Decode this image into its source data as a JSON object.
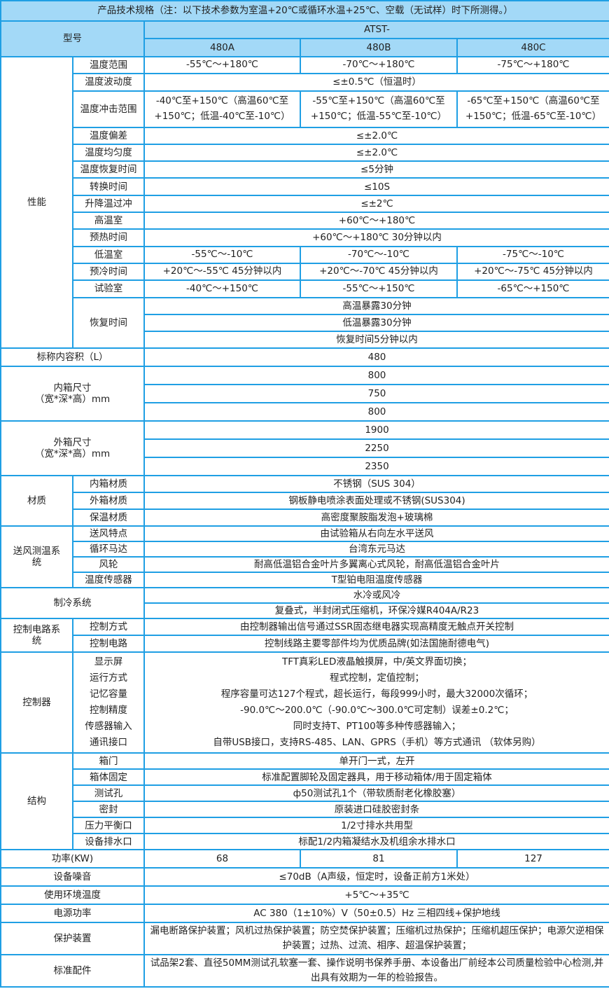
{
  "title": "产品技术规格（注：以下技术参数为室温+20℃或循环水温+25℃、空载（无试样）时下所测得。）",
  "model_header": {
    "label": "型号",
    "series": "ATST-",
    "models": [
      "480A",
      "480B",
      "480C"
    ]
  },
  "sections": [
    {
      "label": [
        "性能"
      ],
      "rows": [
        {
          "label": "温度范围",
          "values": [
            "-55℃～+180℃",
            "-70℃～+180℃",
            "-75℃～+180℃"
          ]
        },
        {
          "label": "温度波动度",
          "value": "≤±0.5℃（恒温时）"
        },
        {
          "label": "温度冲击范围",
          "values": [
            "-40℃至+150℃（高温60℃至+150℃；低温-40℃至-10℃）",
            "-55℃至+150℃（高温60℃至+150℃；低温-55℃至-10℃）",
            "-65℃至+150℃（高温60℃至+150℃；低温-65℃至-10℃）"
          ]
        },
        {
          "label": "温度偏差",
          "value": "≤±2.0℃"
        },
        {
          "label": "温度均匀度",
          "value": "≤±2.0℃"
        },
        {
          "label": "温度恢复时间",
          "value": "≤5分钟"
        },
        {
          "label": "转换时间",
          "value": "≤10S"
        },
        {
          "label": "升降温过冲",
          "value": "≤±2℃"
        },
        {
          "label": "高温室",
          "value": "+60℃～+180℃"
        },
        {
          "label": "预热时间",
          "value": "+60℃～+180℃ 30分钟以内"
        },
        {
          "label": "低温室",
          "values": [
            "-55℃～-10℃",
            "-70℃～-10℃",
            "-75℃～-10℃"
          ]
        },
        {
          "label": "预冷时间",
          "values": [
            "+20℃～-55℃ 45分钟以内",
            "+20℃～-70℃ 45分钟以内",
            "+20℃～-75℃ 45分钟以内"
          ]
        },
        {
          "label": "试验室",
          "values": [
            "-40℃～+150℃",
            "-55℃～+150℃",
            "-65℃～+150℃"
          ]
        },
        {
          "label": "恢复时间",
          "multi": [
            "高温暴露30分钟",
            "低温暴露30分钟",
            "恢复时间5分钟以内"
          ]
        }
      ]
    },
    {
      "label": [
        "标称内容积（L）"
      ],
      "full": true,
      "multi": [
        "480"
      ]
    },
    {
      "label": [
        "内箱尺寸",
        "（宽*深*高）mm"
      ],
      "full": true,
      "multi": [
        "800",
        "750",
        "800"
      ]
    },
    {
      "label": [
        "外箱尺寸",
        "（宽*深*高）mm"
      ],
      "full": true,
      "multi": [
        "1900",
        "2250",
        "2350"
      ]
    },
    {
      "label": [
        "材质"
      ],
      "rows": [
        {
          "label": "内箱材质",
          "value": "不锈钢（SUS 304）"
        },
        {
          "label": "外箱材质",
          "value": "钢板静电喷涂表面处理或不锈钢(SUS304)"
        },
        {
          "label": "保温材质",
          "value": "高密度聚胺脂发泡+玻璃棉"
        }
      ]
    },
    {
      "label": [
        "送风测温系",
        "统"
      ],
      "rows": [
        {
          "label": "送风特点",
          "value": "由试验箱从右向左水平送风"
        },
        {
          "label": "循环马达",
          "value": "台湾东元马达"
        },
        {
          "label": "风轮",
          "value": "耐高低温铝合金叶片多翼离心式风轮，耐高低温铝合金叶片"
        },
        {
          "label": "温度传感器",
          "value": "T型铂电阻温度传感器"
        }
      ]
    },
    {
      "label": [
        "制冷系统"
      ],
      "full": true,
      "multi": [
        "水冷或风冷",
        "复叠式，半封闭式压缩机，环保冷媒R404A/R23"
      ]
    },
    {
      "label": [
        "控制电路系",
        "统"
      ],
      "rows": [
        {
          "label": "控制方式",
          "value": "由控制器输出信号通过SSR固态继电器实现高精度无触点开关控制"
        },
        {
          "label": "控制电路",
          "value": "控制线路主要零部件均为优质品牌(如法国施耐德电气)"
        }
      ]
    },
    {
      "label": [
        "控制器"
      ],
      "lines": {
        "labels": [
          "显示屏",
          "运行方式",
          "记忆容量",
          "控制精度",
          "传感器输入",
          "通讯接口"
        ],
        "values": [
          "TFT真彩LED液晶触摸屏，中/英文界面切换；",
          "程式控制，定值控制；",
          "程序容量可达127个程式，超长运行，每段999小时，最大32000次循环；",
          "-90.0℃～200.0℃（-90.0℃～300.0℃可定制）误差±0.2℃；",
          "同时支持T、PT100等多种传感器输入；",
          "自带USB接口，支持RS-485、LAN、GPRS（手机）等方式通讯 （软体另购）"
        ]
      }
    },
    {
      "label": [
        "结构"
      ],
      "rows": [
        {
          "label": "箱门",
          "value": "单开门一式，左开"
        },
        {
          "label": "箱体固定",
          "value": "标准配置脚轮及固定器具，用于移动箱体/用于固定箱体"
        },
        {
          "label": "测试孔",
          "value": "ф50测试孔1个（带软质耐老化橡胶塞）"
        },
        {
          "label": "密封",
          "value": "原装进口硅胶密封条"
        },
        {
          "label": "压力平衡口",
          "value": "1/2寸排水共用型"
        },
        {
          "label": "设备排水口",
          "value": "标配1/2内箱凝结水及机组余水排水口"
        }
      ]
    },
    {
      "label": [
        "功率(KW)"
      ],
      "full": true,
      "values": [
        "68",
        "81",
        "127"
      ]
    },
    {
      "label": [
        "设备噪音"
      ],
      "full": true,
      "multi": [
        "≤70dB（A声级，恒定时，设备正前方1米处）"
      ]
    },
    {
      "label": [
        "使用环境温度"
      ],
      "full": true,
      "multi": [
        "+5℃～+35℃"
      ]
    },
    {
      "label": [
        "电源功率"
      ],
      "full": true,
      "multi": [
        "AC 380（1±10%）V（50±0.5）Hz 三相四线+保护地线"
      ]
    },
    {
      "label": [
        "保护装置"
      ],
      "full": true,
      "multi": [
        "漏电断路保护装置；风机过热保护装置；防空焚保护装置；压缩机过热保护；压缩机超压保护；电源欠逆相保护装置；过热、过流、相序、超温保护装置；"
      ]
    },
    {
      "label": [
        "标准配件"
      ],
      "full": true,
      "multi": [
        "试品架2套、直径50MM测试孔软塞一套、操作说明书保养手册、本设备出厂前经本公司质量检验中心检测,并出具有效期为一年的检验报告。"
      ]
    }
  ],
  "colors": {
    "border": "#1f9fe4",
    "header_bg": "#a3d9f7"
  }
}
